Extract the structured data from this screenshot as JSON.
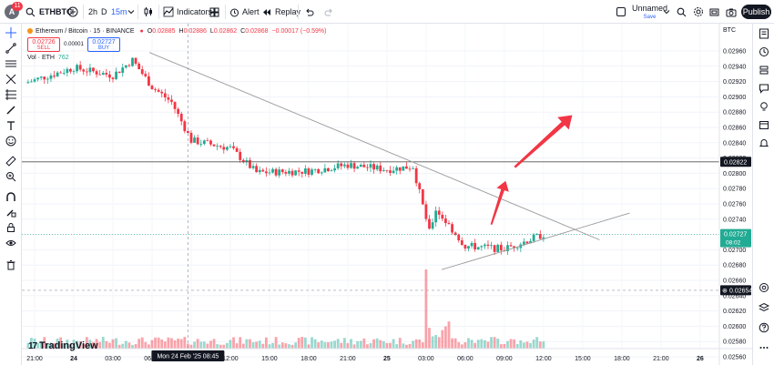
{
  "topbar": {
    "avatar_letter": "A",
    "notification_count": "11",
    "symbol": "ETHBTC",
    "timeframes": [
      "2h",
      "D",
      "15m"
    ],
    "indicators_label": "Indicators",
    "alert_label": "Alert",
    "replay_label": "Replay",
    "layout_name": "Unnamed",
    "layout_status": "Save",
    "publish_label": "Publish"
  },
  "legend": {
    "title": "Ethereum / Bitcoin · 15 · BINANCE",
    "open_label": "O",
    "open": "0.02885",
    "high_label": "H",
    "high": "0.02886",
    "low_label": "L",
    "low": "0.02862",
    "close_label": "C",
    "close": "0.02868",
    "change": "−0.00017 (−0.59%)",
    "sell_price": "0.02726",
    "sell_label": "SELL",
    "spread": "0.00001",
    "buy_price": "0.02727",
    "buy_label": "BUY",
    "volume_label": "Vol · ETH",
    "volume_value": "762"
  },
  "price_axis": {
    "currency": "BTC",
    "ticks": [
      "0.02960",
      "0.02940",
      "0.02920",
      "0.02900",
      "0.02880",
      "0.02860",
      "0.02840",
      "0.02820",
      "0.02800",
      "0.02780",
      "0.02760",
      "0.02740",
      "0.02720",
      "0.02700",
      "0.02680",
      "0.02660",
      "0.02640",
      "0.02620",
      "0.02600",
      "0.02580",
      "0.02560"
    ],
    "horizontal_line_label": "0.02822",
    "current_price_label": "0.02727",
    "countdown_label": "08:02",
    "crosshair_label": "0.02654"
  },
  "time_axis": {
    "ticks": [
      "21:00",
      "24",
      "03:00",
      "06:00",
      "09:00",
      "12:00",
      "15:00",
      "18:00",
      "21:00",
      "25",
      "03:00",
      "06:00",
      "09:00",
      "12:00",
      "15:00",
      "18:00",
      "21:00",
      "26"
    ],
    "crosshair_label": "Mon 24 Feb '25  08:45"
  },
  "branding": {
    "logo_text": "TradingView"
  },
  "colors": {
    "up": "#22ab94",
    "down": "#f23645",
    "accent": "#2962ff",
    "arrow": "#f23645",
    "trendline": "#9a9a9a"
  },
  "chart_data": {
    "type": "candlestick",
    "y_axis_range": [
      0.02555,
      0.02975
    ],
    "horizontal_line": 0.02822,
    "current_price": 0.02727,
    "close_path": [
      {
        "time": "20:15",
        "value": 0.02925
      },
      {
        "time": "24 00:00",
        "value": 0.02945
      },
      {
        "time": "24 03:00",
        "value": 0.02935
      },
      {
        "time": "24 04:30",
        "value": 0.02955
      },
      {
        "time": "24 06:00",
        "value": 0.0292
      },
      {
        "time": "24 07:30",
        "value": 0.029
      },
      {
        "time": "24 09:00",
        "value": 0.0285
      },
      {
        "time": "24 12:00",
        "value": 0.0284
      },
      {
        "time": "24 14:00",
        "value": 0.02808
      },
      {
        "time": "24 18:00",
        "value": 0.0281
      },
      {
        "time": "24 21:00",
        "value": 0.02818
      },
      {
        "time": "25 00:00",
        "value": 0.02812
      },
      {
        "time": "25 02:00",
        "value": 0.02816
      },
      {
        "time": "25 03:15",
        "value": 0.0273
      },
      {
        "time": "25 03:45",
        "value": 0.0276
      },
      {
        "time": "25 06:00",
        "value": 0.02712
      },
      {
        "time": "25 09:00",
        "value": 0.02708
      },
      {
        "time": "25 12:00",
        "value": 0.02727
      }
    ],
    "volume_spike_time": "25 03:00"
  }
}
